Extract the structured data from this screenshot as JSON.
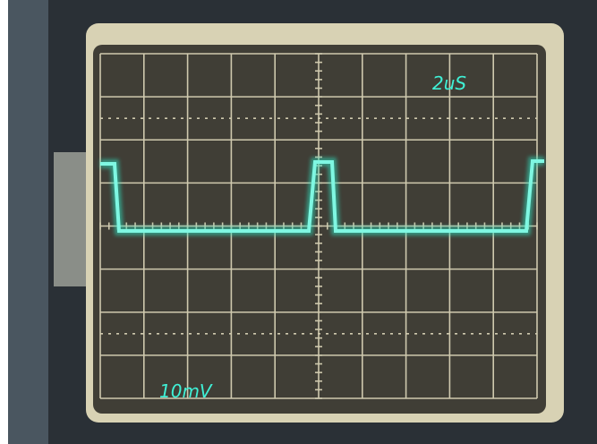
{
  "screen": {
    "time_per_div": "2uS",
    "volts_per_div": "10mV"
  }
}
